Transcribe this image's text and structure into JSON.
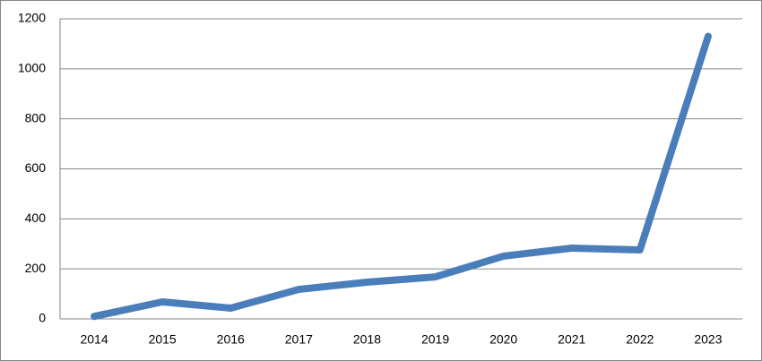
{
  "chart_data": {
    "type": "line",
    "categories": [
      "2014",
      "2015",
      "2016",
      "2017",
      "2018",
      "2019",
      "2020",
      "2021",
      "2022",
      "2023"
    ],
    "values": [
      10,
      68,
      43,
      118,
      147,
      168,
      251,
      283,
      276,
      1130
    ],
    "color": "#4a7ebb",
    "ylim": [
      0,
      1200
    ],
    "yticks": [
      0,
      200,
      400,
      600,
      800,
      1000,
      1200
    ],
    "grid": true
  }
}
